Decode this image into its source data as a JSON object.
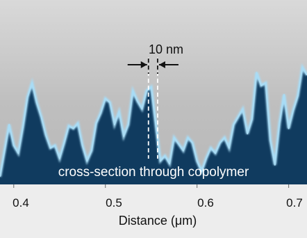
{
  "chart_data": {
    "type": "area",
    "title": "",
    "xlabel": "Distance (μm)",
    "ylabel": "",
    "xlim": [
      0.385,
      0.72
    ],
    "ylim": [
      0,
      1
    ],
    "xticks": [
      "0.4",
      "0.5",
      "0.6",
      "0.7"
    ],
    "xtick_values": [
      0.4,
      0.5,
      0.6,
      0.7
    ],
    "grid": false,
    "legend": "none",
    "inner_caption": "cross-section through copolymer",
    "annotation": {
      "label": "10 nm",
      "x_left": 0.547,
      "x_right": 0.557
    },
    "colors": {
      "fill": "#103b5f",
      "outline": "#a9dcf5",
      "panel": "#c8c8c8"
    },
    "x": [
      0.385,
      0.39,
      0.395,
      0.4,
      0.405,
      0.41,
      0.415,
      0.42,
      0.425,
      0.43,
      0.435,
      0.44,
      0.445,
      0.45,
      0.455,
      0.46,
      0.465,
      0.47,
      0.475,
      0.48,
      0.485,
      0.49,
      0.495,
      0.5,
      0.505,
      0.51,
      0.515,
      0.52,
      0.525,
      0.53,
      0.535,
      0.54,
      0.545,
      0.55,
      0.555,
      0.56,
      0.565,
      0.57,
      0.575,
      0.58,
      0.585,
      0.59,
      0.595,
      0.6,
      0.605,
      0.61,
      0.615,
      0.62,
      0.625,
      0.63,
      0.635,
      0.64,
      0.645,
      0.65,
      0.655,
      0.66,
      0.665,
      0.67,
      0.675,
      0.68,
      0.685,
      0.69,
      0.695,
      0.7,
      0.705,
      0.71,
      0.715,
      0.72
    ],
    "y": [
      0.06,
      0.26,
      0.46,
      0.3,
      0.24,
      0.44,
      0.67,
      0.78,
      0.63,
      0.52,
      0.38,
      0.28,
      0.3,
      0.2,
      0.32,
      0.45,
      0.43,
      0.47,
      0.3,
      0.18,
      0.26,
      0.47,
      0.55,
      0.66,
      0.63,
      0.46,
      0.56,
      0.37,
      0.46,
      0.72,
      0.64,
      0.58,
      0.72,
      0.75,
      0.46,
      0.18,
      0.22,
      0.16,
      0.36,
      0.31,
      0.26,
      0.36,
      0.32,
      0.18,
      0.1,
      0.2,
      0.28,
      0.24,
      0.32,
      0.36,
      0.28,
      0.46,
      0.52,
      0.58,
      0.39,
      0.5,
      0.86,
      0.76,
      0.78,
      0.34,
      0.15,
      0.47,
      0.69,
      0.43,
      0.57,
      0.68,
      0.9,
      0.84
    ]
  }
}
